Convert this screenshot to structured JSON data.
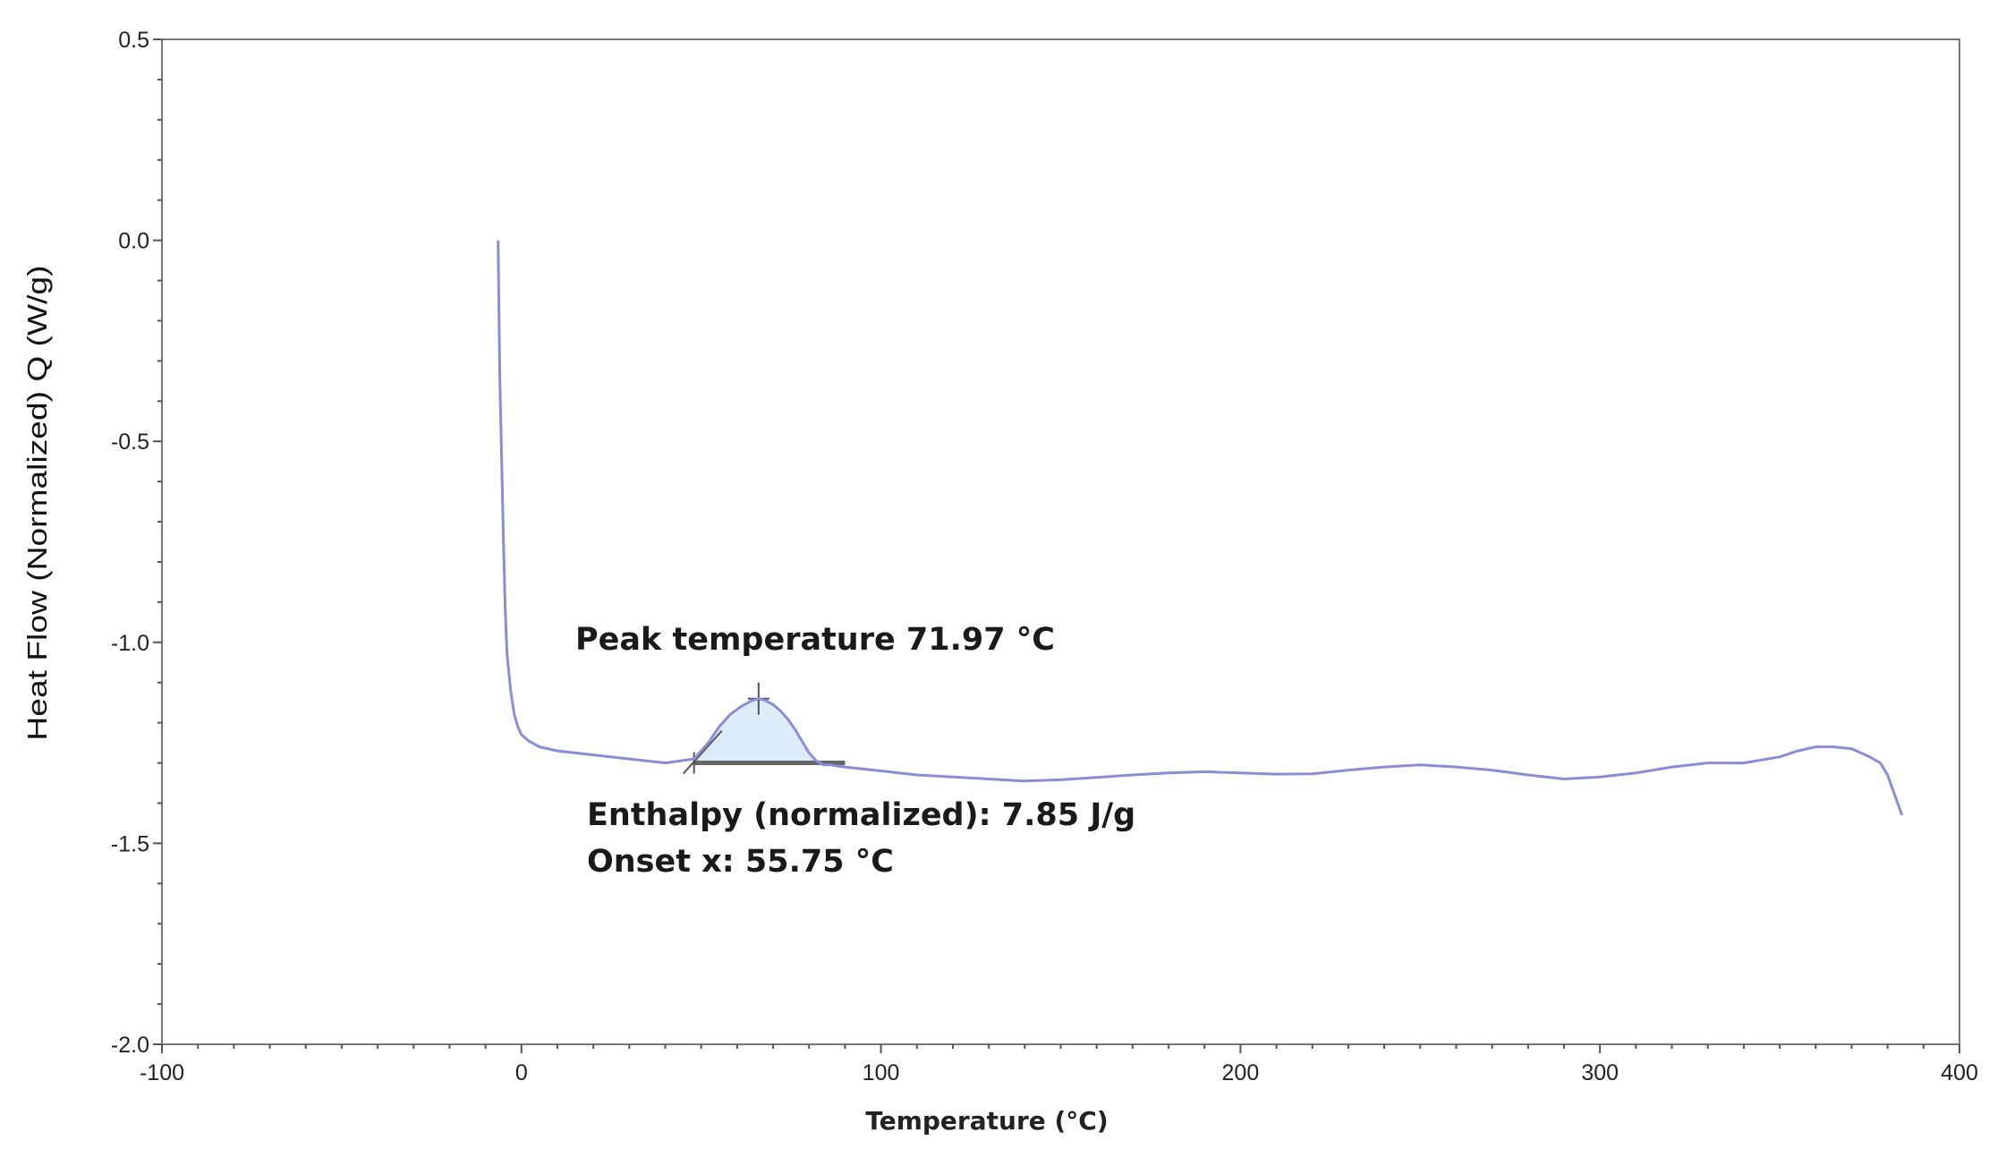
{
  "chart_data": {
    "type": "line",
    "title": "",
    "xlabel": "Temperature (°C)",
    "ylabel": "Heat Flow (Normalized) Q (W/g)",
    "xlim": [
      -100,
      400
    ],
    "ylim": [
      -2.0,
      0.5
    ],
    "x_ticks": [
      -100,
      0,
      100,
      200,
      300,
      400
    ],
    "x_tick_labels": [
      "-100",
      "0",
      "100",
      "200",
      "300",
      "400"
    ],
    "y_ticks": [
      0.5,
      0.0,
      -0.5,
      -1.0,
      -1.5,
      -2.0
    ],
    "y_tick_labels": [
      "0.5",
      "0.0",
      "-0.5",
      "-1.0",
      "-1.5",
      "-2.0"
    ],
    "grid": false,
    "line_color": "#8c8cd6",
    "peak_fill_color": "#dcecfa",
    "series": [
      {
        "name": "Heat Flow",
        "x": [
          -6.5,
          -6.3,
          -6.0,
          -5.5,
          -5.0,
          -4.5,
          -4.0,
          -3.0,
          -2.0,
          -1.0,
          0.0,
          2,
          5,
          10,
          20,
          30,
          40,
          48,
          52,
          55,
          58,
          61,
          64,
          66,
          68,
          70,
          72,
          74,
          76,
          78,
          80,
          82,
          84,
          86,
          88,
          90,
          100,
          110,
          120,
          130,
          140,
          150,
          160,
          170,
          180,
          190,
          200,
          210,
          220,
          230,
          240,
          250,
          260,
          270,
          280,
          290,
          300,
          310,
          320,
          330,
          340,
          350,
          355,
          360,
          365,
          370,
          375,
          378,
          380,
          382,
          384
        ],
        "y": [
          0.0,
          -0.15,
          -0.35,
          -0.55,
          -0.75,
          -0.92,
          -1.03,
          -1.12,
          -1.18,
          -1.21,
          -1.23,
          -1.245,
          -1.26,
          -1.27,
          -1.28,
          -1.29,
          -1.3,
          -1.29,
          -1.25,
          -1.21,
          -1.18,
          -1.16,
          -1.145,
          -1.14,
          -1.145,
          -1.155,
          -1.17,
          -1.19,
          -1.215,
          -1.245,
          -1.275,
          -1.295,
          -1.305,
          -1.305,
          -1.308,
          -1.31,
          -1.32,
          -1.33,
          -1.335,
          -1.34,
          -1.345,
          -1.342,
          -1.336,
          -1.33,
          -1.325,
          -1.322,
          -1.325,
          -1.328,
          -1.327,
          -1.318,
          -1.31,
          -1.305,
          -1.31,
          -1.318,
          -1.33,
          -1.34,
          -1.335,
          -1.325,
          -1.31,
          -1.3,
          -1.3,
          -1.285,
          -1.27,
          -1.26,
          -1.26,
          -1.265,
          -1.285,
          -1.3,
          -1.33,
          -1.38,
          -1.43
        ]
      }
    ],
    "peak": {
      "onset_x": 55.75,
      "peak_x": 71.97,
      "baseline_start_x": 48,
      "baseline_end_x": 90,
      "baseline_y": -1.3
    },
    "annotations": {
      "peak_temperature": "Peak temperature 71.97 °C",
      "enthalpy": "Enthalpy (normalized): 7.85 J/g",
      "onset": "Onset x: 55.75 °C"
    }
  }
}
